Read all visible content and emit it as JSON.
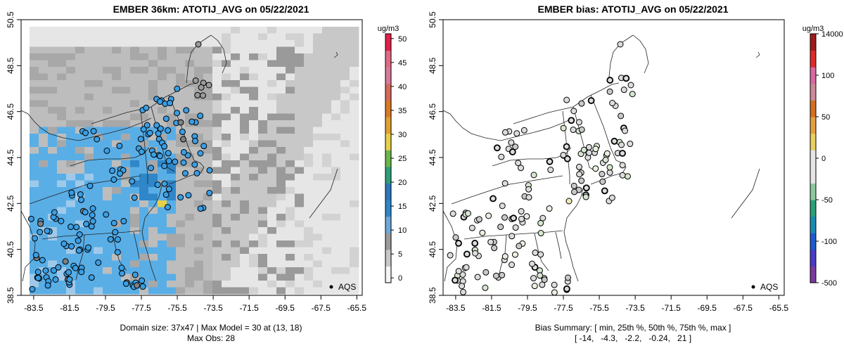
{
  "chart_data": [
    {
      "type": "heatmap",
      "title": "EMBER 36km: ATOTIJ_AVG on 05/22/2021",
      "x_ticks": [
        "-83.5",
        "-81.5",
        "-79.5",
        "-77.5",
        "-75.5",
        "-73.5",
        "-71.5",
        "-69.5",
        "-67.5",
        "-65.5"
      ],
      "y_ticks": [
        "38.5",
        "40.5",
        "42.5",
        "44.5",
        "46.5",
        "48.5",
        "50.5"
      ],
      "xlim": [
        -84.2,
        -65.2
      ],
      "ylim": [
        38.5,
        50.5
      ],
      "colorbar": {
        "unit": "ug/m3",
        "ticks": [
          "0",
          "5",
          "10",
          "15",
          "20",
          "25",
          "30",
          "35",
          "40",
          "45",
          "50"
        ],
        "range": [
          -1,
          51
        ]
      },
      "legend": "AQS",
      "caption_line1": "Domain size: 37x47 | Max Model = 30 at (13, 18)",
      "caption_line2": "Max Obs: 28",
      "colors": {
        "low": "#e6e6e6",
        "mid": "#9a9a9a",
        "model_blue": "#5aaee6",
        "obs_blue": "#3a9ee4",
        "hot": "#e6d04a"
      }
    },
    {
      "type": "scatter",
      "title": "EMBER bias: ATOTIJ_AVG on 05/22/2021",
      "x_ticks": [
        "-83.5",
        "-81.5",
        "-79.5",
        "-77.5",
        "-75.5",
        "-73.5",
        "-71.5",
        "-69.5",
        "-67.5",
        "-65.5"
      ],
      "y_ticks": [
        "38.5",
        "40.5",
        "42.5",
        "44.5",
        "46.5",
        "48.5",
        "50.5"
      ],
      "xlim": [
        -84.2,
        -65.2
      ],
      "ylim": [
        38.5,
        50.5
      ],
      "colorbar": {
        "unit": "ug/m3",
        "ticks": [
          "14000",
          "100",
          "50",
          "0",
          "-50",
          "-100",
          "-500"
        ]
      },
      "legend": "AQS",
      "caption_line1": "Bias Summary: [ min, 25th %, 50th %, 75th %, max ]",
      "caption_line2": "[ -14,   -4.3,   -2.2,   -0.24,   21 ]",
      "bias_summary": {
        "min": -14,
        "p25": -4.3,
        "p50": -2.2,
        "p75": -0.24,
        "max": 21
      }
    }
  ]
}
